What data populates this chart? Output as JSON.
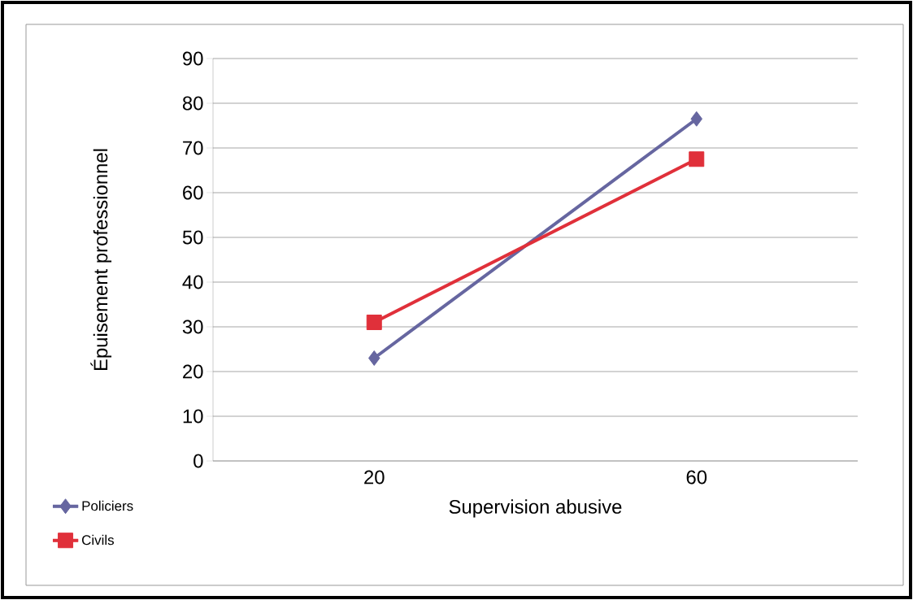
{
  "chart_data": {
    "type": "line",
    "xlabel": "Supervision abusive",
    "ylabel": "Épuisement professionnel",
    "categories": [
      "20",
      "60"
    ],
    "series": [
      {
        "name": "Policiers",
        "color": "#6666a0",
        "values": [
          23,
          76.5
        ],
        "marker": "diamond"
      },
      {
        "name": "Civils",
        "color": "#e0303a",
        "values": [
          31,
          67.5
        ],
        "marker": "square"
      }
    ],
    "ylim": [
      0,
      90
    ],
    "yticks": [
      0,
      10,
      20,
      30,
      40,
      50,
      60,
      70,
      80,
      90
    ],
    "grid": "y",
    "legend": "bottom left"
  }
}
